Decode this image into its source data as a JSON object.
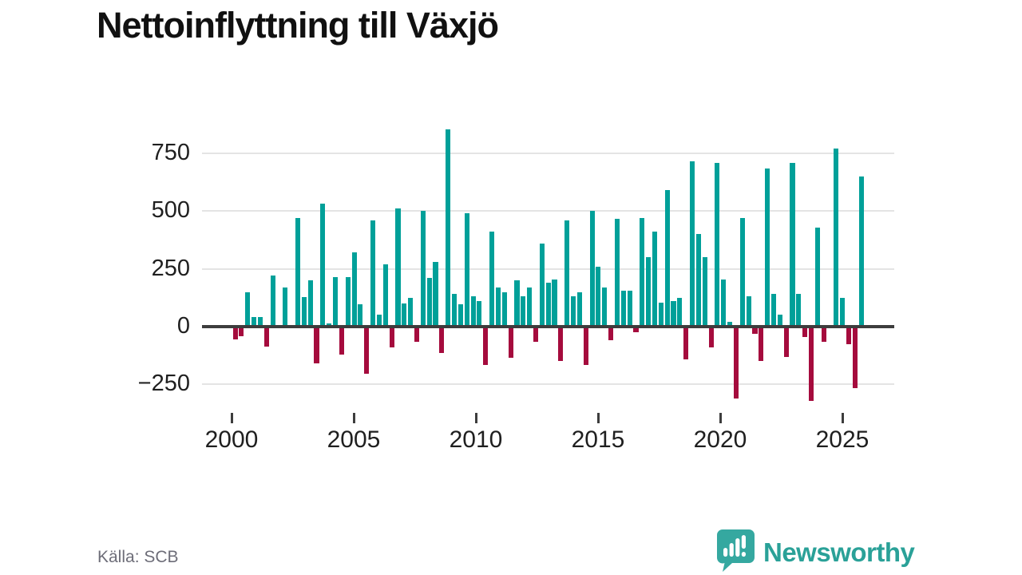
{
  "title": "Nettoinflyttning till Växjö",
  "source": "Källa: SCB",
  "branding": {
    "logo_text": "Newsworthy",
    "logo_icon": "speech-bubble-with-bar-chart-and-exclamation"
  },
  "colors": {
    "positive": "#00a099",
    "negative": "#a50b3d",
    "grid": "#e4e4e4",
    "zero_line": "#3d3d3d",
    "axis_text": "#1f1f1f",
    "title_text": "#111111",
    "source_text": "#6d6d78",
    "brand_teal": "#2aa198",
    "background": "#ffffff"
  },
  "chart_data": {
    "type": "bar",
    "title": "Nettoinflyttning till Växjö",
    "xlabel": "",
    "ylabel": "",
    "grid": true,
    "legend": "none",
    "ylim": [
      -350,
      900
    ],
    "yticks": [
      750,
      500,
      250,
      0,
      -250
    ],
    "ytick_labels": [
      "750",
      "500",
      "250",
      "0",
      "−250"
    ],
    "xticks": [
      2000,
      2005,
      2010,
      2015,
      2020,
      2025
    ],
    "xtick_labels": [
      "2000",
      "2005",
      "2010",
      "2015",
      "2020",
      "2025"
    ],
    "quarters": [
      "2000Q1",
      "2000Q2",
      "2000Q3",
      "2000Q4",
      "2001Q1",
      "2001Q2",
      "2001Q3",
      "2001Q4",
      "2002Q1",
      "2002Q2",
      "2002Q3",
      "2002Q4",
      "2003Q1",
      "2003Q2",
      "2003Q3",
      "2003Q4",
      "2004Q1",
      "2004Q2",
      "2004Q3",
      "2004Q4",
      "2005Q1",
      "2005Q2",
      "2005Q3",
      "2005Q4",
      "2006Q1",
      "2006Q2",
      "2006Q3",
      "2006Q4",
      "2007Q1",
      "2007Q2",
      "2007Q3",
      "2007Q4",
      "2008Q1",
      "2008Q2",
      "2008Q3",
      "2008Q4",
      "2009Q1",
      "2009Q2",
      "2009Q3",
      "2009Q4",
      "2010Q1",
      "2010Q2",
      "2010Q3",
      "2010Q4",
      "2011Q1",
      "2011Q2",
      "2011Q3",
      "2011Q4",
      "2012Q1",
      "2012Q2",
      "2012Q3",
      "2012Q4",
      "2013Q1",
      "2013Q2",
      "2013Q3",
      "2013Q4",
      "2014Q1",
      "2014Q2",
      "2014Q3",
      "2014Q4",
      "2015Q1",
      "2015Q2",
      "2015Q3",
      "2015Q4",
      "2016Q1",
      "2016Q2",
      "2016Q3",
      "2016Q4",
      "2017Q1",
      "2017Q2",
      "2017Q3",
      "2017Q4",
      "2018Q1",
      "2018Q2",
      "2018Q3",
      "2018Q4",
      "2019Q1",
      "2019Q2",
      "2019Q3",
      "2019Q4",
      "2020Q1",
      "2020Q2",
      "2020Q3",
      "2020Q4",
      "2021Q1",
      "2021Q2",
      "2021Q3",
      "2021Q4",
      "2022Q1",
      "2022Q2",
      "2022Q3",
      "2022Q4",
      "2023Q1",
      "2023Q2",
      "2023Q3",
      "2023Q4",
      "2024Q1",
      "2024Q2",
      "2024Q3",
      "2024Q4",
      "2025Q1"
    ],
    "values": [
      -55,
      -40,
      150,
      42,
      42,
      -85,
      220,
      0,
      168,
      0,
      470,
      127,
      200,
      -160,
      532,
      15,
      215,
      -120,
      215,
      322,
      95,
      -205,
      460,
      52,
      270,
      -88,
      510,
      100,
      125,
      -65,
      500,
      210,
      280,
      -115,
      855,
      140,
      95,
      490,
      130,
      110,
      -165,
      410,
      170,
      150,
      -135,
      200,
      130,
      170,
      -65,
      360,
      190,
      205,
      -150,
      460,
      130,
      150,
      -165,
      500,
      260,
      170,
      -60,
      465,
      155,
      155,
      -25,
      470,
      300,
      410,
      105,
      590,
      110,
      125,
      -140,
      715,
      400,
      300,
      -90,
      710,
      205,
      20,
      -310,
      470,
      130,
      -30,
      -150,
      685,
      140,
      50,
      -130,
      710,
      140,
      -45,
      -320,
      430,
      -65,
      0,
      770,
      125,
      -75,
      -265,
      650
    ]
  }
}
